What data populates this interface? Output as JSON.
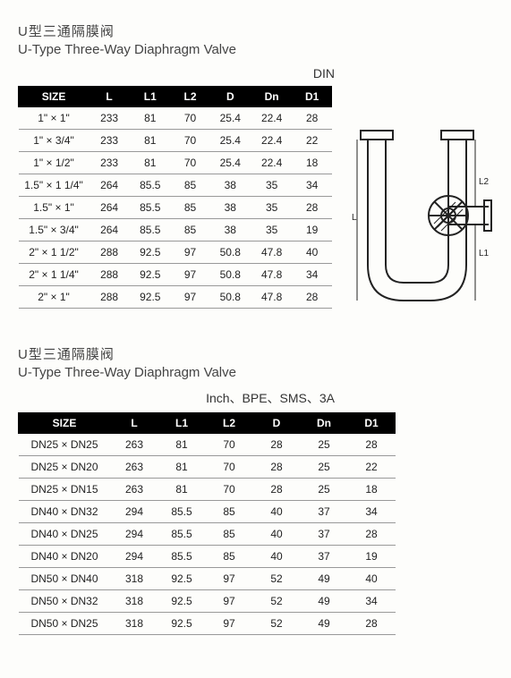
{
  "section1": {
    "title_cn": "U型三通隔膜阀",
    "title_en": "U-Type Three-Way Diaphragm Valve",
    "standard": "DIN",
    "columns": [
      "SIZE",
      "L",
      "L1",
      "L2",
      "D",
      "Dn",
      "D1"
    ],
    "rows": [
      [
        "1\" × 1\"",
        "233",
        "81",
        "70",
        "25.4",
        "22.4",
        "28"
      ],
      [
        "1\" × 3/4\"",
        "233",
        "81",
        "70",
        "25.4",
        "22.4",
        "22"
      ],
      [
        "1\" × 1/2\"",
        "233",
        "81",
        "70",
        "25.4",
        "22.4",
        "18"
      ],
      [
        "1.5\" × 1 1/4\"",
        "264",
        "85.5",
        "85",
        "38",
        "35",
        "34"
      ],
      [
        "1.5\" × 1\"",
        "264",
        "85.5",
        "85",
        "38",
        "35",
        "28"
      ],
      [
        "1.5\" × 3/4\"",
        "264",
        "85.5",
        "85",
        "38",
        "35",
        "19"
      ],
      [
        "2\" × 1 1/2\"",
        "288",
        "92.5",
        "97",
        "50.8",
        "47.8",
        "40"
      ],
      [
        "2\" × 1 1/4\"",
        "288",
        "92.5",
        "97",
        "50.8",
        "47.8",
        "34"
      ],
      [
        "2\" × 1\"",
        "288",
        "92.5",
        "97",
        "50.8",
        "47.8",
        "28"
      ]
    ]
  },
  "section2": {
    "title_cn": "U型三通隔膜阀",
    "title_en": "U-Type Three-Way Diaphragm Valve",
    "standard": "Inch、BPE、SMS、3A",
    "columns": [
      "SIZE",
      "L",
      "L1",
      "L2",
      "D",
      "Dn",
      "D1"
    ],
    "rows": [
      [
        "DN25 × DN25",
        "263",
        "81",
        "70",
        "28",
        "25",
        "28"
      ],
      [
        "DN25 × DN20",
        "263",
        "81",
        "70",
        "28",
        "25",
        "22"
      ],
      [
        "DN25 × DN15",
        "263",
        "81",
        "70",
        "28",
        "25",
        "18"
      ],
      [
        "DN40 × DN32",
        "294",
        "85.5",
        "85",
        "40",
        "37",
        "34"
      ],
      [
        "DN40 × DN25",
        "294",
        "85.5",
        "85",
        "40",
        "37",
        "28"
      ],
      [
        "DN40 × DN20",
        "294",
        "85.5",
        "85",
        "40",
        "37",
        "19"
      ],
      [
        "DN50 × DN40",
        "318",
        "92.5",
        "97",
        "52",
        "49",
        "40"
      ],
      [
        "DN50 × DN32",
        "318",
        "92.5",
        "97",
        "52",
        "49",
        "34"
      ],
      [
        "DN50 × DN25",
        "318",
        "92.5",
        "97",
        "52",
        "49",
        "28"
      ]
    ]
  },
  "diagram": {
    "labels": {
      "L": "L",
      "L1": "L1",
      "L2": "L2"
    },
    "stroke": "#222",
    "hatch": "#222"
  }
}
